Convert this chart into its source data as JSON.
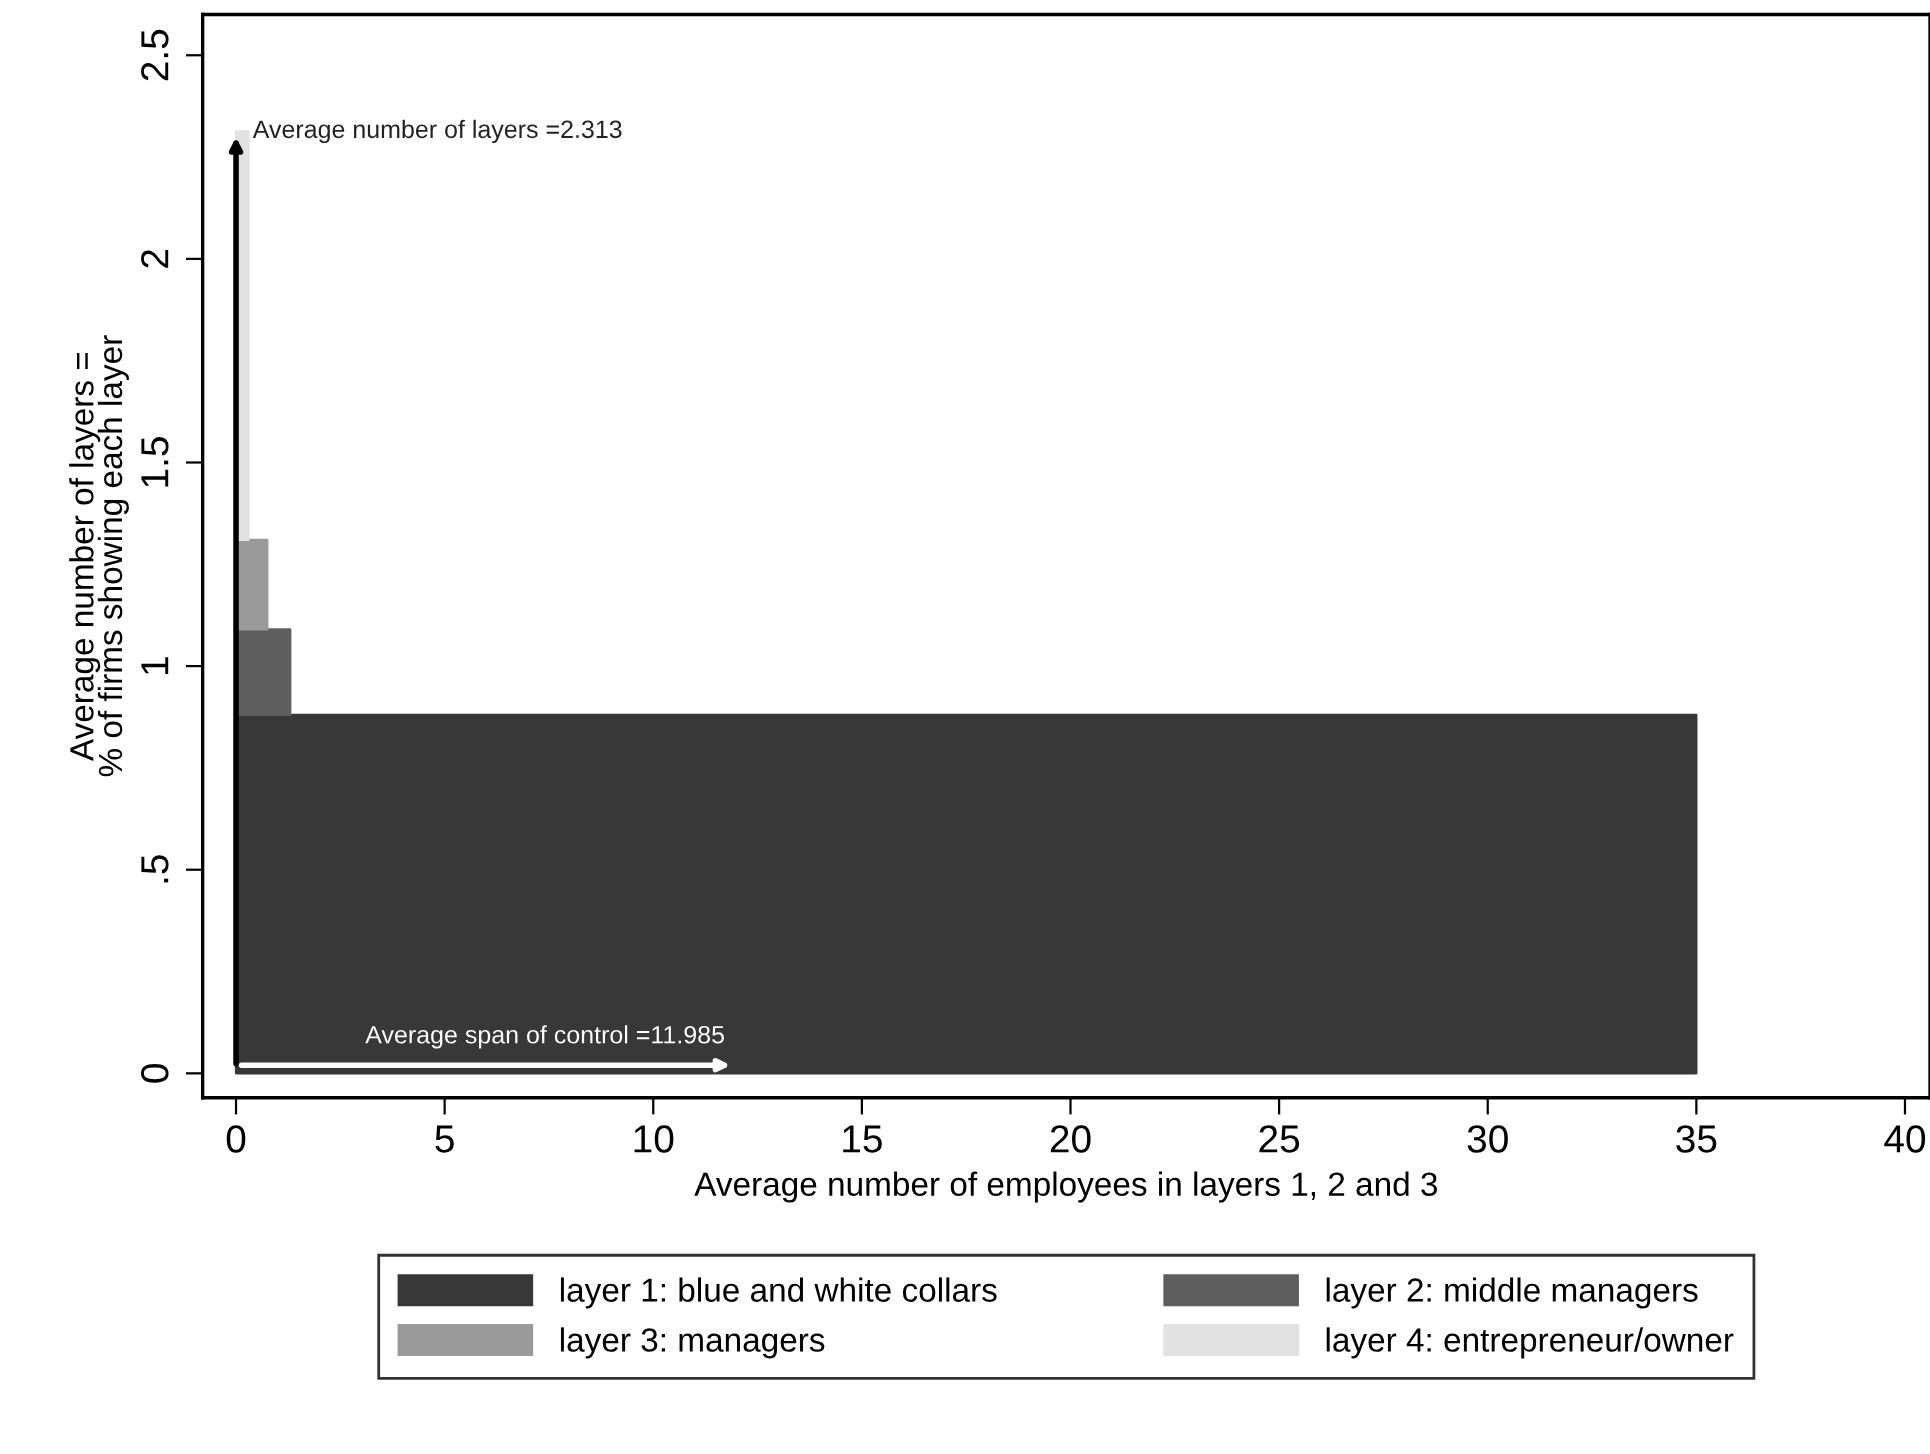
{
  "chart_data": {
    "type": "area",
    "stacked": true,
    "xlabel": "Average number of employees in layers 1, 2 and 3",
    "ylabel": "Average number of layers =\n% of firms showing each layer",
    "series": [
      {
        "name": "layer 1: blue and white collars",
        "color": "#383838",
        "x": [
          0,
          35
        ],
        "values": [
          0.88,
          0.88
        ]
      },
      {
        "name": "layer 2: middle managers",
        "color": "#5e5e5e",
        "x": [
          0,
          1.3
        ],
        "values": [
          0.21,
          0.21
        ]
      },
      {
        "name": "layer 3: managers",
        "color": "#9a9a9a",
        "x": [
          0,
          0.75
        ],
        "values": [
          0.22,
          0.22
        ]
      },
      {
        "name": "layer 4: entrepreneur/owner",
        "color": "#e2e2e2",
        "x": [
          0,
          0.3
        ],
        "values": [
          1.003,
          1.003
        ]
      }
    ],
    "annotations": [
      {
        "text": "Average number of layers =2.313",
        "x": 0,
        "y": 2.313
      },
      {
        "text": "Average span of control =11.985",
        "x": 11.985,
        "y": 0.02
      }
    ],
    "xlim": [
      -0.8,
      40.6
    ],
    "ylim": [
      -0.06,
      2.6
    ],
    "xticks": [
      0,
      5,
      10,
      15,
      20,
      25,
      30,
      35,
      40
    ],
    "yticks": [
      0,
      {
        "value": 0.5,
        "label": ".5"
      },
      1,
      1.5,
      2,
      2.5
    ],
    "grid": false,
    "legend": "bottom"
  }
}
